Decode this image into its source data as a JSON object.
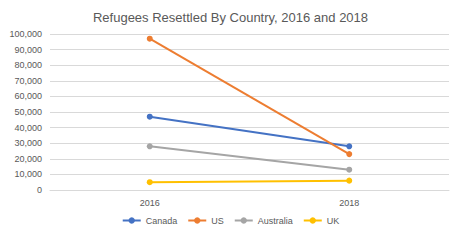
{
  "chart_data": {
    "type": "line",
    "title": "Refugees Resettled By Country, 2016 and 2018",
    "categories": [
      "2016",
      "2018"
    ],
    "series": [
      {
        "name": "Canada",
        "color": "#4472c4",
        "values": [
          47000,
          28000
        ]
      },
      {
        "name": "US",
        "color": "#ed7d31",
        "values": [
          97000,
          23000
        ]
      },
      {
        "name": "Australia",
        "color": "#a5a5a5",
        "values": [
          28000,
          13000
        ]
      },
      {
        "name": "UK",
        "color": "#ffc000",
        "values": [
          5000,
          6000
        ]
      }
    ],
    "ylim": [
      0,
      100000
    ],
    "yticks": [
      0,
      {
        "value": 10000,
        "label": "10,000"
      },
      {
        "value": 20000,
        "label": "20,000"
      },
      {
        "value": 30000,
        "label": "30,000"
      },
      {
        "value": 40000,
        "label": "40,000"
      },
      {
        "value": 50000,
        "label": "50,000"
      },
      {
        "value": 60000,
        "label": "60,000"
      },
      {
        "value": 70000,
        "label": "70,000"
      },
      {
        "value": 80000,
        "label": "80,000"
      },
      {
        "value": 90000,
        "label": "90,000"
      },
      {
        "value": 100000,
        "label": "100,000"
      }
    ],
    "grid": true,
    "legend": "bottom",
    "marker": "circle",
    "line_style": "solid"
  }
}
